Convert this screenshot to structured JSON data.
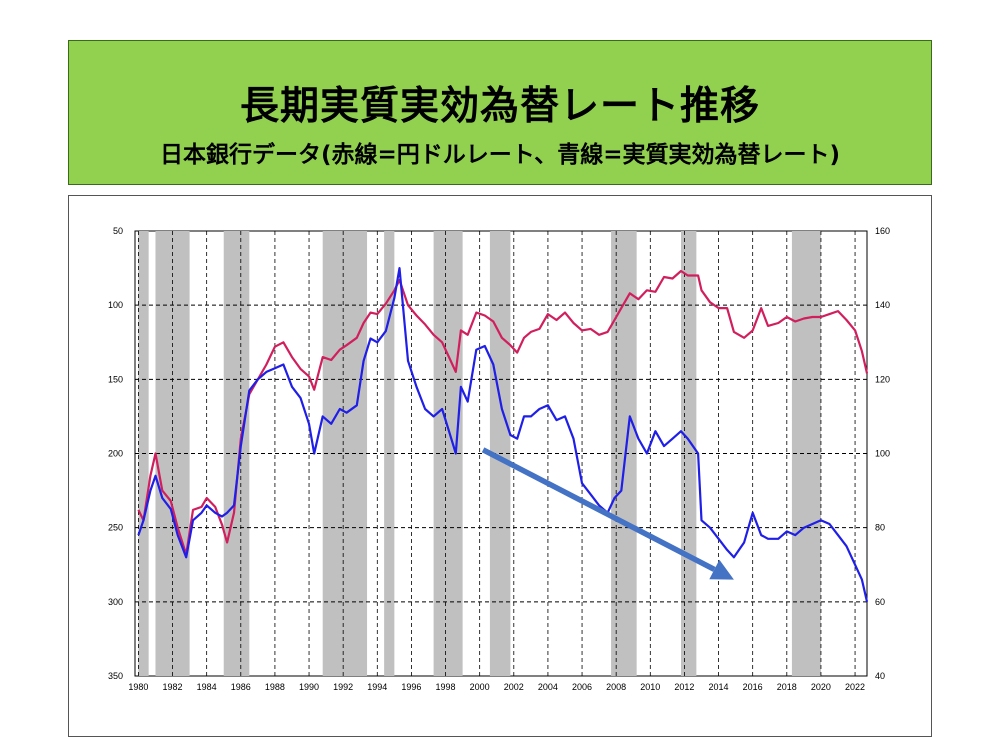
{
  "title": "長期実質実効為替レート推移",
  "subtitle": "日本銀行データ(赤線=円ドルレート、青線=実質実効為替レート)",
  "colors": {
    "usd_jpy": "#d11f5e",
    "reer": "#1f1fe8",
    "arrow": "#4472c4",
    "shade": "#c0c0c0",
    "title_bg": "#92d050"
  },
  "chart_data": {
    "type": "line",
    "x_ticks": [
      "1980",
      "1982",
      "1984",
      "1986",
      "1988",
      "1990",
      "1992",
      "1994",
      "1996",
      "1998",
      "2000",
      "2002",
      "2004",
      "2006",
      "2008",
      "2010",
      "2012",
      "2014",
      "2016",
      "2018",
      "2020",
      "2022"
    ],
    "xlim": [
      1979.8,
      2022.7
    ],
    "left_axis": {
      "ticks": [
        "50",
        "100",
        "150",
        "200",
        "250",
        "300",
        "350"
      ],
      "range": [
        50,
        350
      ],
      "inverted": true
    },
    "right_axis": {
      "ticks": [
        "160",
        "140",
        "120",
        "100",
        "80",
        "60",
        "40"
      ],
      "range": [
        40,
        160
      ]
    },
    "shaded_periods": [
      [
        1980.0,
        1980.6
      ],
      [
        1981.0,
        1983.0
      ],
      [
        1985.0,
        1986.5
      ],
      [
        1990.8,
        1993.4
      ],
      [
        1994.4,
        1995.0
      ],
      [
        1997.3,
        1999.0
      ],
      [
        2000.6,
        2001.8
      ],
      [
        2007.7,
        2009.2
      ],
      [
        2011.8,
        2012.7
      ],
      [
        2018.3,
        2020.0
      ]
    ],
    "series": [
      {
        "key": "usd_jpy",
        "axis": "left",
        "points": [
          [
            1980,
            238
          ],
          [
            1980.3,
            245
          ],
          [
            1980.7,
            215
          ],
          [
            1981,
            200
          ],
          [
            1981.4,
            225
          ],
          [
            1981.9,
            232
          ],
          [
            1982.3,
            250
          ],
          [
            1982.8,
            268
          ],
          [
            1983.2,
            238
          ],
          [
            1983.7,
            236
          ],
          [
            1984,
            230
          ],
          [
            1984.5,
            236
          ],
          [
            1984.9,
            248
          ],
          [
            1985.2,
            260
          ],
          [
            1985.6,
            240
          ],
          [
            1986,
            190
          ],
          [
            1986.5,
            160
          ],
          [
            1987,
            150
          ],
          [
            1987.5,
            140
          ],
          [
            1988,
            128
          ],
          [
            1988.5,
            125
          ],
          [
            1989,
            135
          ],
          [
            1989.5,
            143
          ],
          [
            1990,
            148
          ],
          [
            1990.3,
            157
          ],
          [
            1990.8,
            135
          ],
          [
            1991.3,
            137
          ],
          [
            1991.8,
            130
          ],
          [
            1992.2,
            127
          ],
          [
            1992.8,
            122
          ],
          [
            1993.2,
            112
          ],
          [
            1993.6,
            105
          ],
          [
            1994,
            106
          ],
          [
            1994.5,
            99
          ],
          [
            1995,
            90
          ],
          [
            1995.3,
            83
          ],
          [
            1995.8,
            100
          ],
          [
            1996.3,
            107
          ],
          [
            1996.8,
            113
          ],
          [
            1997.3,
            120
          ],
          [
            1997.8,
            125
          ],
          [
            1998.2,
            135
          ],
          [
            1998.6,
            145
          ],
          [
            1998.9,
            117
          ],
          [
            1999.3,
            120
          ],
          [
            1999.8,
            105
          ],
          [
            2000.3,
            107
          ],
          [
            2000.8,
            111
          ],
          [
            2001.3,
            122
          ],
          [
            2001.8,
            127
          ],
          [
            2002.2,
            132
          ],
          [
            2002.6,
            122
          ],
          [
            2003,
            118
          ],
          [
            2003.5,
            116
          ],
          [
            2004,
            106
          ],
          [
            2004.5,
            110
          ],
          [
            2005,
            105
          ],
          [
            2005.5,
            112
          ],
          [
            2006,
            117
          ],
          [
            2006.5,
            116
          ],
          [
            2007,
            120
          ],
          [
            2007.5,
            118
          ],
          [
            2007.9,
            110
          ],
          [
            2008.3,
            102
          ],
          [
            2008.8,
            92
          ],
          [
            2009.3,
            96
          ],
          [
            2009.8,
            90
          ],
          [
            2010.3,
            91
          ],
          [
            2010.8,
            81
          ],
          [
            2011.3,
            82
          ],
          [
            2011.8,
            77
          ],
          [
            2012.2,
            80
          ],
          [
            2012.8,
            80
          ],
          [
            2013,
            90
          ],
          [
            2013.5,
            98
          ],
          [
            2014,
            102
          ],
          [
            2014.5,
            102
          ],
          [
            2014.9,
            118
          ],
          [
            2015.5,
            122
          ],
          [
            2016,
            117
          ],
          [
            2016.5,
            102
          ],
          [
            2016.9,
            114
          ],
          [
            2017.5,
            112
          ],
          [
            2018,
            108
          ],
          [
            2018.5,
            111
          ],
          [
            2019,
            109
          ],
          [
            2019.5,
            108
          ],
          [
            2020,
            108
          ],
          [
            2020.5,
            106
          ],
          [
            2021,
            104
          ],
          [
            2021.5,
            110
          ],
          [
            2022,
            117
          ],
          [
            2022.4,
            131
          ],
          [
            2022.7,
            146
          ]
        ]
      },
      {
        "key": "reer",
        "axis": "right",
        "points": [
          [
            1980,
            78
          ],
          [
            1980.3,
            82
          ],
          [
            1980.7,
            90
          ],
          [
            1981,
            94
          ],
          [
            1981.4,
            88
          ],
          [
            1981.9,
            85
          ],
          [
            1982.3,
            78
          ],
          [
            1982.8,
            72
          ],
          [
            1983.2,
            82
          ],
          [
            1983.7,
            84
          ],
          [
            1984,
            86
          ],
          [
            1984.5,
            84
          ],
          [
            1984.9,
            83
          ],
          [
            1985.2,
            84
          ],
          [
            1985.6,
            86
          ],
          [
            1986,
            102
          ],
          [
            1986.5,
            117
          ],
          [
            1987,
            120
          ],
          [
            1987.5,
            122
          ],
          [
            1988,
            123
          ],
          [
            1988.5,
            124
          ],
          [
            1989,
            118
          ],
          [
            1989.5,
            115
          ],
          [
            1990,
            108
          ],
          [
            1990.3,
            100
          ],
          [
            1990.8,
            110
          ],
          [
            1991.3,
            108
          ],
          [
            1991.8,
            112
          ],
          [
            1992.2,
            111
          ],
          [
            1992.8,
            113
          ],
          [
            1993.2,
            125
          ],
          [
            1993.6,
            131
          ],
          [
            1994,
            130
          ],
          [
            1994.5,
            133
          ],
          [
            1995,
            142
          ],
          [
            1995.3,
            150
          ],
          [
            1995.8,
            125
          ],
          [
            1996.3,
            118
          ],
          [
            1996.8,
            112
          ],
          [
            1997.3,
            110
          ],
          [
            1997.8,
            112
          ],
          [
            1998.2,
            106
          ],
          [
            1998.6,
            100
          ],
          [
            1998.9,
            118
          ],
          [
            1999.3,
            114
          ],
          [
            1999.8,
            128
          ],
          [
            2000.3,
            129
          ],
          [
            2000.8,
            124
          ],
          [
            2001.3,
            112
          ],
          [
            2001.8,
            105
          ],
          [
            2002.2,
            104
          ],
          [
            2002.6,
            110
          ],
          [
            2003,
            110
          ],
          [
            2003.5,
            112
          ],
          [
            2004,
            113
          ],
          [
            2004.5,
            109
          ],
          [
            2005,
            110
          ],
          [
            2005.5,
            104
          ],
          [
            2006,
            92
          ],
          [
            2006.5,
            89
          ],
          [
            2007,
            86
          ],
          [
            2007.5,
            84
          ],
          [
            2007.9,
            88
          ],
          [
            2008.3,
            90
          ],
          [
            2008.8,
            110
          ],
          [
            2009.3,
            104
          ],
          [
            2009.8,
            100
          ],
          [
            2010.3,
            106
          ],
          [
            2010.8,
            102
          ],
          [
            2011.3,
            104
          ],
          [
            2011.8,
            106
          ],
          [
            2012.2,
            104
          ],
          [
            2012.8,
            100
          ],
          [
            2013,
            82
          ],
          [
            2013.5,
            80
          ],
          [
            2014,
            77
          ],
          [
            2014.5,
            74
          ],
          [
            2014.9,
            72
          ],
          [
            2015.5,
            76
          ],
          [
            2016,
            84
          ],
          [
            2016.5,
            78
          ],
          [
            2016.9,
            77
          ],
          [
            2017.5,
            77
          ],
          [
            2018,
            79
          ],
          [
            2018.5,
            78
          ],
          [
            2019,
            80
          ],
          [
            2019.5,
            81
          ],
          [
            2020,
            82
          ],
          [
            2020.5,
            81
          ],
          [
            2021,
            78
          ],
          [
            2021.5,
            75
          ],
          [
            2022,
            70
          ],
          [
            2022.4,
            66
          ],
          [
            2022.7,
            60
          ]
        ]
      }
    ],
    "trend_arrow": {
      "from": [
        2000.2,
        101
      ],
      "to": [
        2014.9,
        66
      ]
    }
  }
}
